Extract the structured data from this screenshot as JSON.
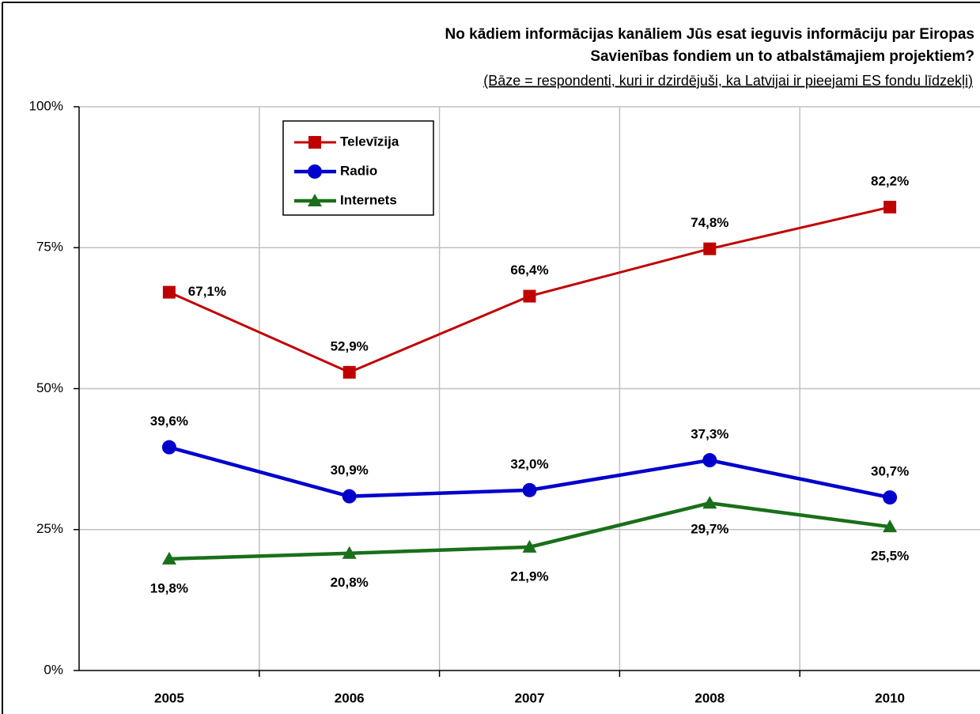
{
  "chart_data": {
    "type": "line",
    "title": [
      "No kādiem informācijas kanāliem Jūs esat ieguvis informāciju par Eiropas",
      "Savienības fondiem un to atbalstāmajiem projektiem?"
    ],
    "subtitle": "(Bāze = respondenti, kuri ir dzirdējuši, ka Latvijai ir pieejami ES fondu līdzekļi)",
    "categories": [
      "2005",
      "2006",
      "2007",
      "2008",
      "2010"
    ],
    "series": [
      {
        "name": "Televīzija",
        "color": "#c00000",
        "marker": "square",
        "values": [
          67.1,
          52.9,
          66.4,
          74.8,
          82.2
        ],
        "value_labels": [
          "67,1%",
          "52,9%",
          "66,4%",
          "74,8%",
          "82,2%"
        ]
      },
      {
        "name": "Radio",
        "color": "#0000cc",
        "marker": "circle",
        "values": [
          39.6,
          30.9,
          32.0,
          37.3,
          30.7
        ],
        "value_labels": [
          "39,6%",
          "30,9%",
          "32,0%",
          "37,3%",
          "30,7%"
        ]
      },
      {
        "name": "Internets",
        "color": "#1a6f1a",
        "marker": "triangle",
        "values": [
          19.8,
          20.8,
          21.9,
          29.7,
          25.5
        ],
        "value_labels": [
          "19,8%",
          "20,8%",
          "21,9%",
          "29,7%",
          "25,5%"
        ]
      }
    ],
    "ylim": [
      0,
      100
    ],
    "yticks": [
      {
        "value": 0,
        "label": "0%"
      },
      {
        "value": 25,
        "label": "25%"
      },
      {
        "value": 50,
        "label": "50%"
      },
      {
        "value": 75,
        "label": "75%"
      },
      {
        "value": 100,
        "label": "100%"
      }
    ],
    "grid": true,
    "legend": "upper left"
  }
}
